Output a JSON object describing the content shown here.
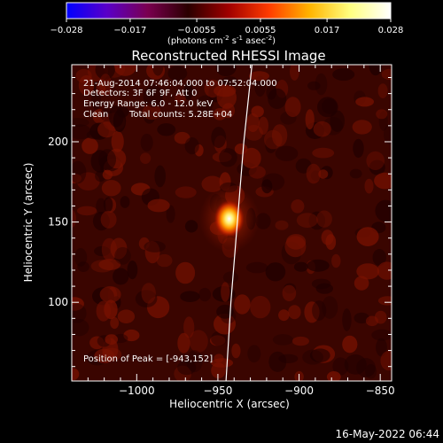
{
  "colorbar": {
    "ticks": [
      "-0.028",
      "-0.017",
      "-0.0055",
      "0.0055",
      "0.017",
      "0.028"
    ],
    "tick_values": [
      -0.028,
      -0.017,
      -0.0055,
      0.0055,
      0.017,
      0.028
    ],
    "range": [
      -0.028,
      0.028
    ],
    "unit_label_parts": [
      "(photons cm",
      "-2",
      " s",
      "-1",
      " asec",
      "-2",
      ")"
    ],
    "stops": [
      "#0000ff",
      "#5a00c8",
      "#7a0050",
      "#2a0000",
      "#a00000",
      "#ff3c00",
      "#ffb400",
      "#ffff80",
      "#ffffff"
    ]
  },
  "chart_data": {
    "type": "heatmap",
    "title": "Reconstructed RHESSI Image",
    "xlabel": "Heliocentric X (arcsec)",
    "ylabel": "Heliocentric Y (arcsec)",
    "xlim": [
      -1040,
      -843
    ],
    "ylim": [
      51,
      248
    ],
    "x_ticks": [
      -1000,
      -950,
      -900,
      -850
    ],
    "x_tick_labels": [
      "−1000",
      "−950",
      "−900",
      "−850"
    ],
    "y_ticks": [
      100,
      150,
      200
    ],
    "y_tick_labels": [
      "100",
      "150",
      "200"
    ],
    "peak": {
      "x": -943,
      "y": 152
    },
    "source_peak_intensity": 0.028,
    "limb_curve": [
      [
        -945,
        51
      ],
      [
        -942,
        100
      ],
      [
        -938,
        150
      ],
      [
        -934,
        200
      ],
      [
        -929,
        248
      ]
    ],
    "annotations": [
      "21-Aug-2014 07:46:04.000 to 07:52:04.000",
      "Detectors: 3F 6F 9F, Att 0",
      "Energy Range: 6.0 - 12.0 keV",
      "Clean",
      "Total counts: 5.28E+04"
    ],
    "peak_label": "Position of Peak = [-943,152]"
  },
  "footer": {
    "timestamp": "16-May-2022 06:44"
  },
  "colors": {
    "background": "#000000",
    "limb": "#ffffff",
    "text": "#ffffff"
  }
}
